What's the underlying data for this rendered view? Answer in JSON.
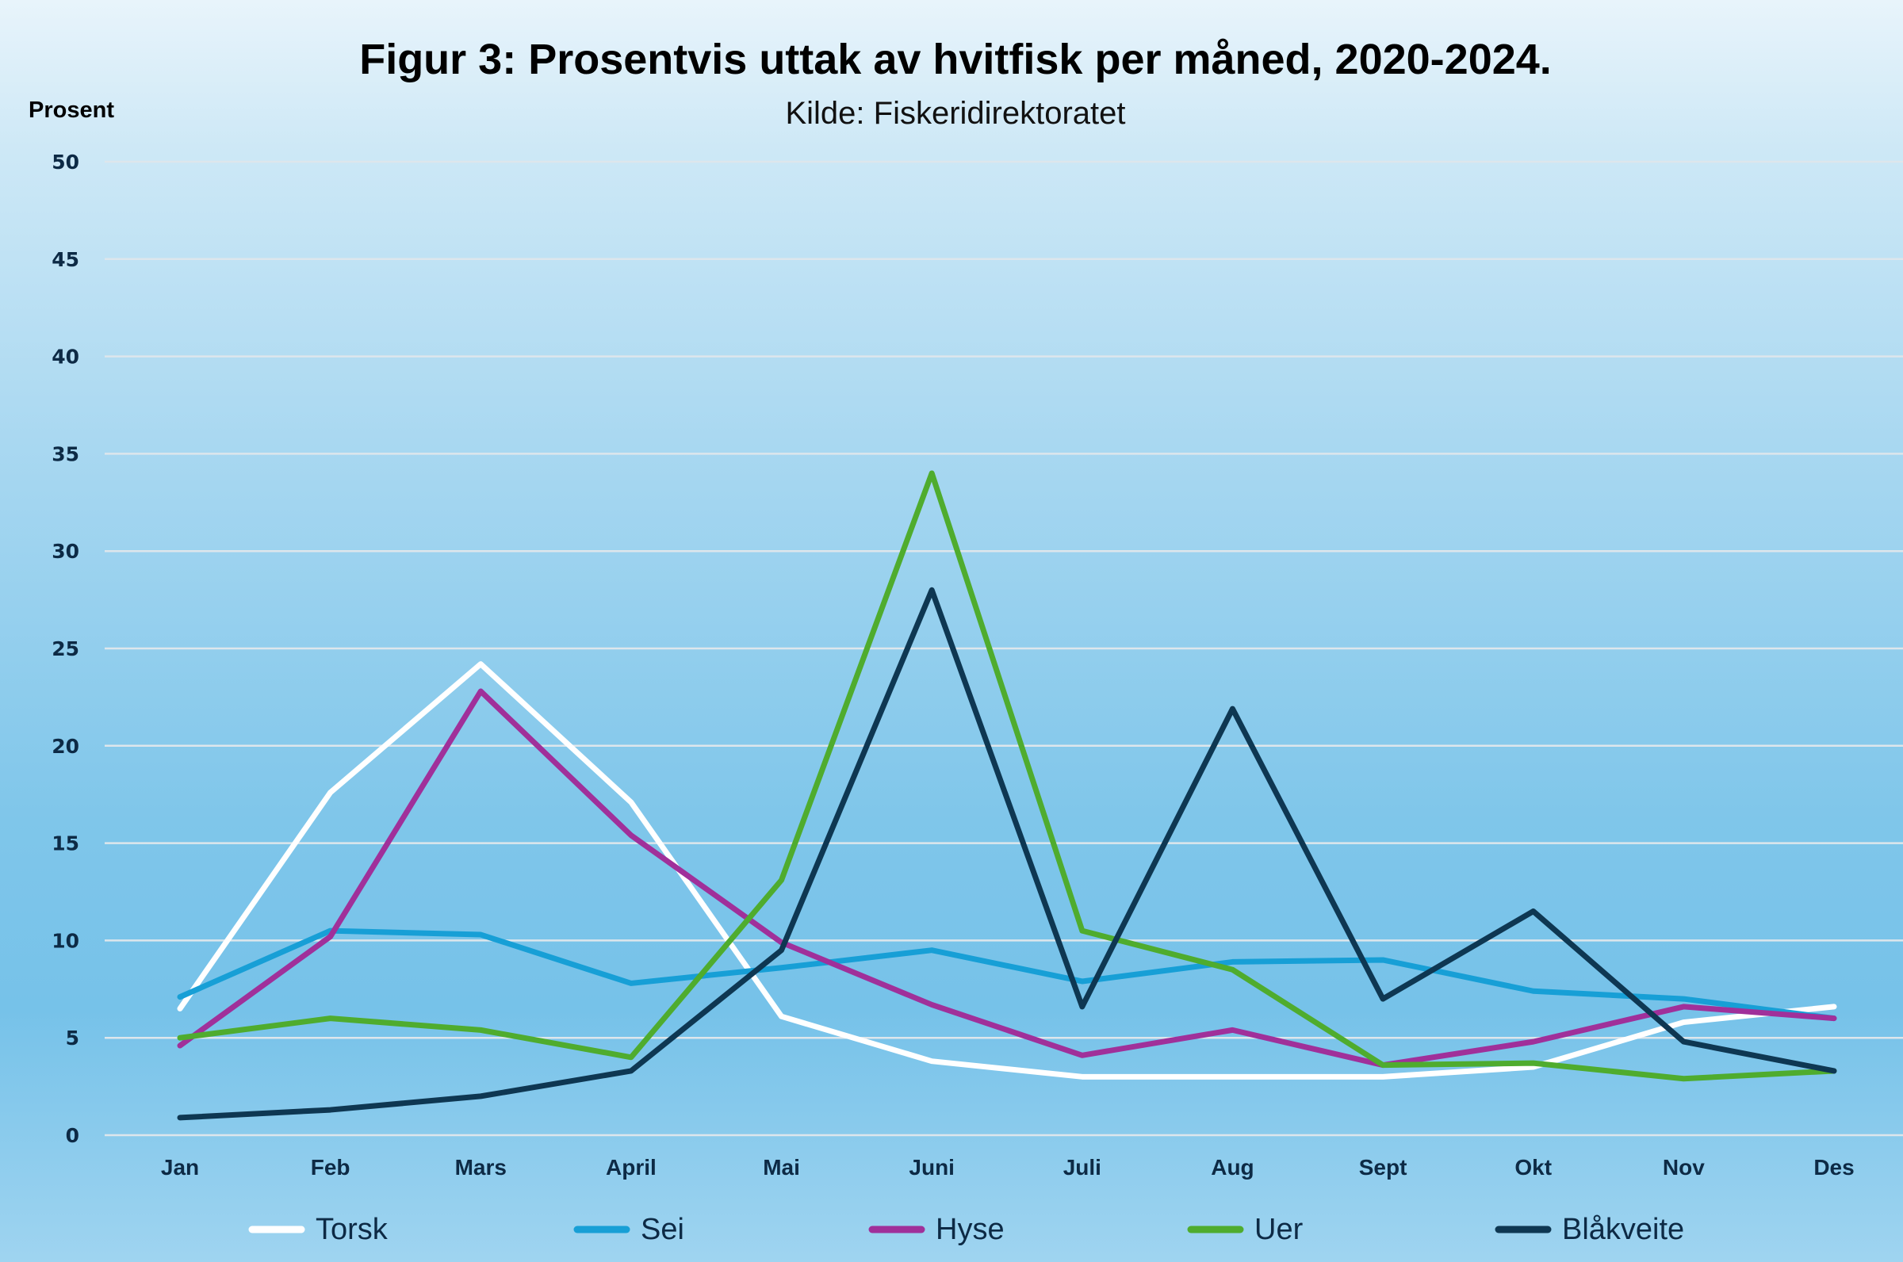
{
  "chart_data": {
    "type": "line",
    "title": "Figur 3: Prosentvis uttak av hvitfisk per måned, 2020-2024.",
    "subtitle": "Kilde: Fiskeridirektoratet",
    "ylabel": "Prosent",
    "xlabel": "",
    "ylim": [
      0,
      50
    ],
    "yticks": [
      0,
      5,
      10,
      15,
      20,
      25,
      30,
      35,
      40,
      45,
      50
    ],
    "grid": true,
    "legend_position": "bottom",
    "categories": [
      "Jan",
      "Feb",
      "Mars",
      "April",
      "Mai",
      "Juni",
      "Juli",
      "Aug",
      "Sept",
      "Okt",
      "Nov",
      "Des"
    ],
    "series": [
      {
        "name": "Torsk",
        "color": "#ffffff",
        "values": [
          6.5,
          17.6,
          24.2,
          17.1,
          6.1,
          3.8,
          3.0,
          3.0,
          3.0,
          3.5,
          5.8,
          6.6
        ]
      },
      {
        "name": "Sei",
        "color": "#179fd6",
        "values": [
          7.1,
          10.5,
          10.3,
          7.8,
          8.6,
          9.5,
          7.9,
          8.9,
          9.0,
          7.4,
          7.0,
          6.0
        ]
      },
      {
        "name": "Hyse",
        "color": "#a0309a",
        "values": [
          4.6,
          10.2,
          22.8,
          15.4,
          9.9,
          6.7,
          4.1,
          5.4,
          3.6,
          4.8,
          6.6,
          6.0
        ]
      },
      {
        "name": "Uer",
        "color": "#4fac2e",
        "values": [
          5.0,
          6.0,
          5.4,
          4.0,
          13.1,
          34.0,
          10.5,
          8.5,
          3.6,
          3.7,
          2.9,
          3.3
        ]
      },
      {
        "name": "Blåkveite",
        "color": "#0e3752",
        "values": [
          0.9,
          1.3,
          2.0,
          3.3,
          9.5,
          28.0,
          6.6,
          21.9,
          7.0,
          11.5,
          4.8,
          3.3
        ]
      }
    ]
  }
}
